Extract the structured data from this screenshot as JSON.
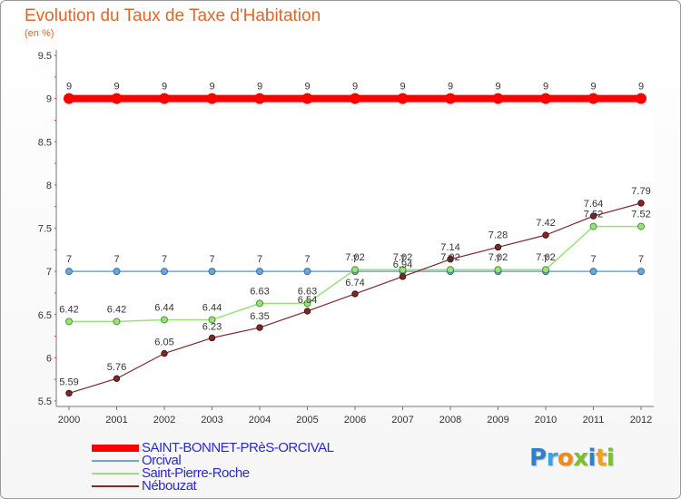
{
  "chart_data": {
    "type": "line",
    "title": "Evolution du Taux de Taxe d'Habitation",
    "ylabel": "(en %)",
    "xlabel": "",
    "categories": [
      "2000",
      "2001",
      "2002",
      "2003",
      "2004",
      "2005",
      "2006",
      "2007",
      "2008",
      "2009",
      "2010",
      "2011",
      "2012"
    ],
    "ylim": [
      5.5,
      9.5
    ],
    "yticks": [
      "5.5",
      "6",
      "6.5",
      "7",
      "7.5",
      "8",
      "8.5",
      "9",
      "9.5"
    ],
    "ytick_values": [
      5.5,
      6,
      6.5,
      7,
      7.5,
      8,
      8.5,
      9,
      9.5
    ],
    "grid": false,
    "legend_position": "bottom-left",
    "series": [
      {
        "name": "SAINT-BONNET-PRèS-ORCIVAL",
        "color": "#ff0000",
        "values": [
          9,
          9,
          9,
          9,
          9,
          9,
          9,
          9,
          9,
          9,
          9,
          9,
          9
        ],
        "labels": [
          "9",
          "9",
          "9",
          "9",
          "9",
          "9",
          "9",
          "9",
          "9",
          "9",
          "9",
          "9",
          "9"
        ]
      },
      {
        "name": "Orcival",
        "color": "#6fa6d8",
        "values": [
          7,
          7,
          7,
          7,
          7,
          7,
          7,
          7,
          7,
          7,
          7,
          7,
          7
        ],
        "labels": [
          "7",
          "7",
          "7",
          "7",
          "7",
          "7",
          "7",
          "7",
          "7",
          "7",
          "7",
          "7",
          "7"
        ]
      },
      {
        "name": "Saint-Pierre-Roche",
        "color": "#9be07a",
        "values": [
          6.42,
          6.42,
          6.44,
          6.44,
          6.63,
          6.63,
          7.02,
          7.02,
          7.02,
          7.02,
          7.02,
          7.52,
          7.52
        ],
        "labels": [
          "6.42",
          "6.42",
          "6.44",
          "6.44",
          "6.63",
          "6.63",
          "7.02",
          "7.02",
          "7.02",
          "7.02",
          "7.02",
          "7.52",
          "7.52"
        ]
      },
      {
        "name": "Nébouzat",
        "color": "#7a2a2a",
        "values": [
          5.59,
          5.76,
          6.05,
          6.23,
          6.35,
          6.54,
          6.74,
          6.94,
          7.14,
          7.28,
          7.42,
          7.64,
          7.79
        ],
        "labels": [
          "5.59",
          "5.76",
          "6.05",
          "6.23",
          "6.35",
          "6.54",
          "6.74",
          "6.94",
          "7.14",
          "7.28",
          "7.42",
          "7.64",
          "7.79"
        ]
      }
    ]
  },
  "legend": {
    "items": [
      {
        "label": "SAINT-BONNET-PRèS-ORCIVAL",
        "color": "#ff0000"
      },
      {
        "label": "Orcival",
        "color": "#6fa6d8"
      },
      {
        "label": "Saint-Pierre-Roche",
        "color": "#9be07a"
      },
      {
        "label": "Nébouzat",
        "color": "#7a2a2a"
      }
    ]
  },
  "branding": {
    "logo": [
      {
        "ch": "P",
        "color": "#2f7fd0"
      },
      {
        "ch": "r",
        "color": "#3aa3e0"
      },
      {
        "ch": "o",
        "color": "#f08a1c"
      },
      {
        "ch": "x",
        "color": "#7bbf2a"
      },
      {
        "ch": "i",
        "color": "#2f7fd0"
      },
      {
        "ch": "t",
        "color": "#f0a21c"
      },
      {
        "ch": "i",
        "color": "#7bbf2a"
      }
    ]
  }
}
